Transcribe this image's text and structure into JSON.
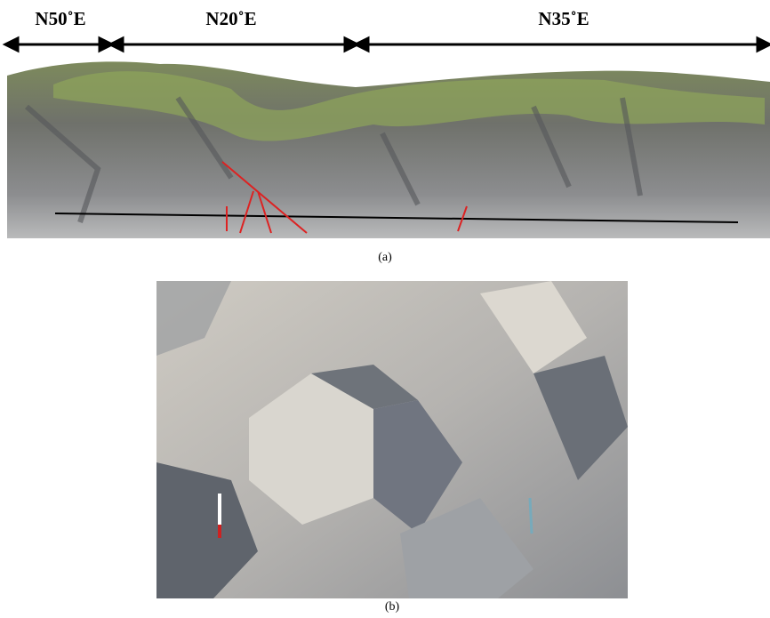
{
  "segments": [
    "N50˚E",
    "N20˚E",
    "N35˚E"
  ],
  "captions": [
    "(a)",
    "(b)"
  ]
}
